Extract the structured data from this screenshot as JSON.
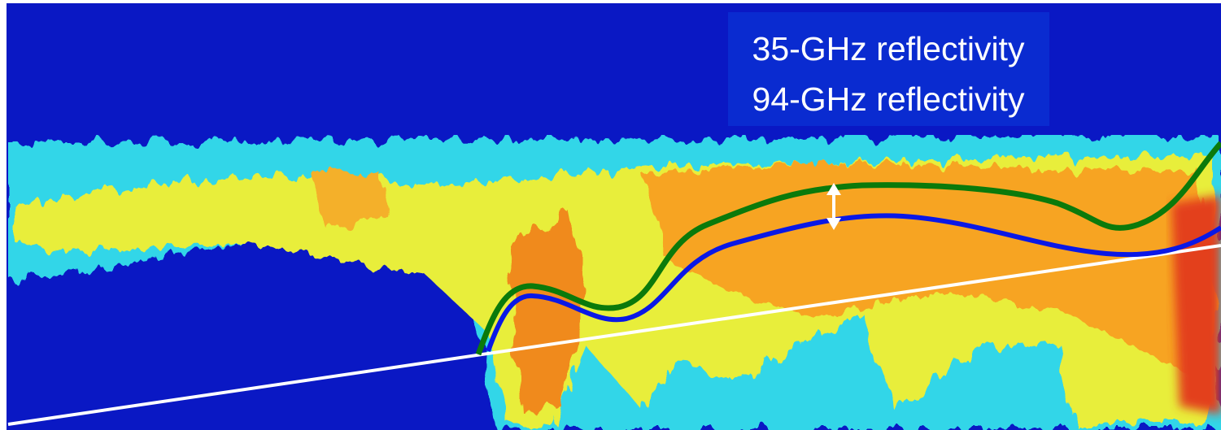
{
  "legend": {
    "items": [
      "35-GHz reflectivity",
      "94-GHz reflectivity"
    ]
  }
}
